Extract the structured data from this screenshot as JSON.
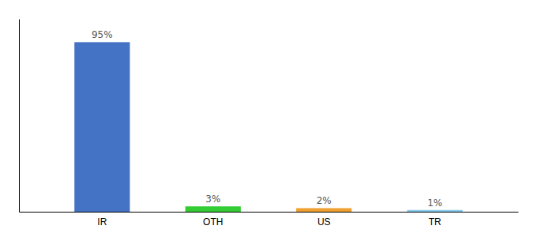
{
  "chart_data": {
    "type": "bar",
    "categories": [
      "IR",
      "OTH",
      "US",
      "TR"
    ],
    "values": [
      95,
      3,
      2,
      1
    ],
    "value_labels": [
      "95%",
      "3%",
      "2%",
      "1%"
    ],
    "colors": [
      "#4472c4",
      "#33cc33",
      "#f0a030",
      "#88ccee"
    ],
    "ylim": [
      0,
      108
    ],
    "data_labels": true,
    "tick_labels": "x"
  }
}
